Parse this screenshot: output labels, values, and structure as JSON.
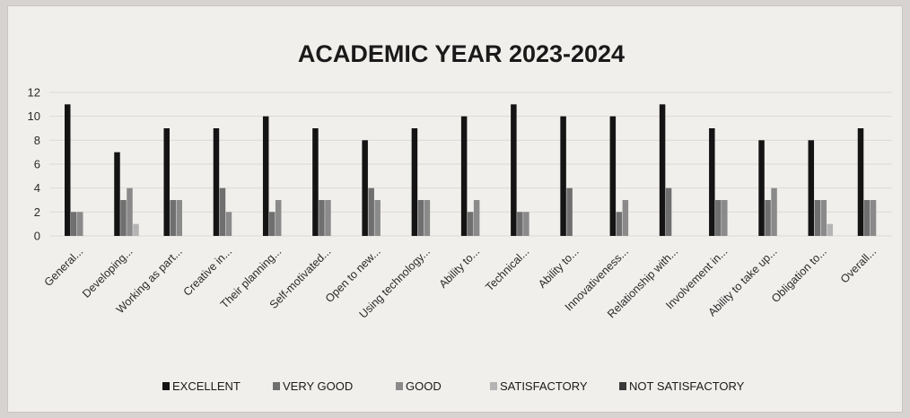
{
  "chart_data": {
    "type": "bar",
    "title": "ACADEMIC YEAR 2023-2024",
    "xlabel": "",
    "ylabel": "",
    "ylim": [
      0,
      12
    ],
    "yticks": [
      "0",
      "2",
      "4",
      "6",
      "8",
      "10",
      "12"
    ],
    "grid": true,
    "legend_position": "bottom",
    "categories": [
      "General...",
      "Developing...",
      "Working as part...",
      "Creative in...",
      "Their planning...",
      "Self-motivated...",
      "Open to new...",
      "Using technology...",
      "Ability to...",
      "Technical...",
      "Ability to...",
      "Innovativeness...",
      "Relationship with...",
      "Involvement in...",
      "Ability to take up...",
      "Obligation to...",
      "Overall..."
    ],
    "series": [
      {
        "name": "EXCELLENT",
        "color": "#141414",
        "values": [
          11,
          7,
          9,
          9,
          10,
          9,
          8,
          9,
          10,
          11,
          10,
          10,
          11,
          9,
          8,
          8,
          9
        ]
      },
      {
        "name": "VERY GOOD",
        "color": "#6f6f6f",
        "values": [
          2,
          3,
          3,
          4,
          2,
          3,
          4,
          3,
          2,
          2,
          4,
          2,
          4,
          3,
          3,
          3,
          3
        ]
      },
      {
        "name": "GOOD",
        "color": "#8a8a8a",
        "values": [
          2,
          4,
          3,
          2,
          3,
          3,
          3,
          3,
          3,
          2,
          0,
          3,
          0,
          3,
          4,
          3,
          3
        ]
      },
      {
        "name": "SATISFACTORY",
        "color": "#b4b4b4",
        "values": [
          0,
          1,
          0,
          0,
          0,
          0,
          0,
          0,
          0,
          0,
          0,
          0,
          0,
          0,
          0,
          1,
          0
        ]
      },
      {
        "name": "NOT SATISFACTORY",
        "color": "#3a3a3a",
        "values": [
          0,
          0,
          0,
          0,
          0,
          0,
          0,
          0,
          0,
          0,
          0,
          0,
          0,
          0,
          0,
          0,
          0
        ]
      }
    ]
  }
}
